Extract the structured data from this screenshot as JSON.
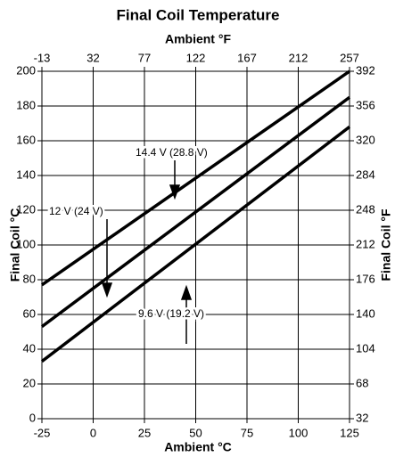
{
  "chart_data": {
    "type": "line",
    "title": "Final Coil Temperature",
    "x_label": "Ambient °C",
    "x2_label": "Ambient °F",
    "y_label": "Final Coil °C",
    "y2_label": "Final Coil °F",
    "x": [
      -25,
      125
    ],
    "series": [
      {
        "name": "14.4 V (28.8 V)",
        "color": "#000000",
        "values": [
          77,
          200
        ]
      },
      {
        "name": "12 V (24 V)",
        "color": "#000000",
        "values": [
          53,
          185
        ]
      },
      {
        "name": "9.6 V (19.2 V)",
        "color": "#000000",
        "values": [
          33,
          168
        ]
      }
    ],
    "xlim": [
      -25,
      125
    ],
    "xticks": [
      -25,
      0,
      25,
      50,
      75,
      100,
      125
    ],
    "x2lim": [
      -13,
      257
    ],
    "x2ticks": [
      -13,
      32,
      77,
      122,
      167,
      212,
      257
    ],
    "ylim": [
      0,
      200
    ],
    "yticks": [
      0,
      20,
      40,
      60,
      80,
      100,
      120,
      140,
      160,
      180,
      200
    ],
    "y2lim": [
      32,
      392
    ],
    "y2ticks": [
      32,
      68,
      104,
      140,
      176,
      212,
      248,
      284,
      320,
      356,
      392
    ],
    "grid": true
  }
}
